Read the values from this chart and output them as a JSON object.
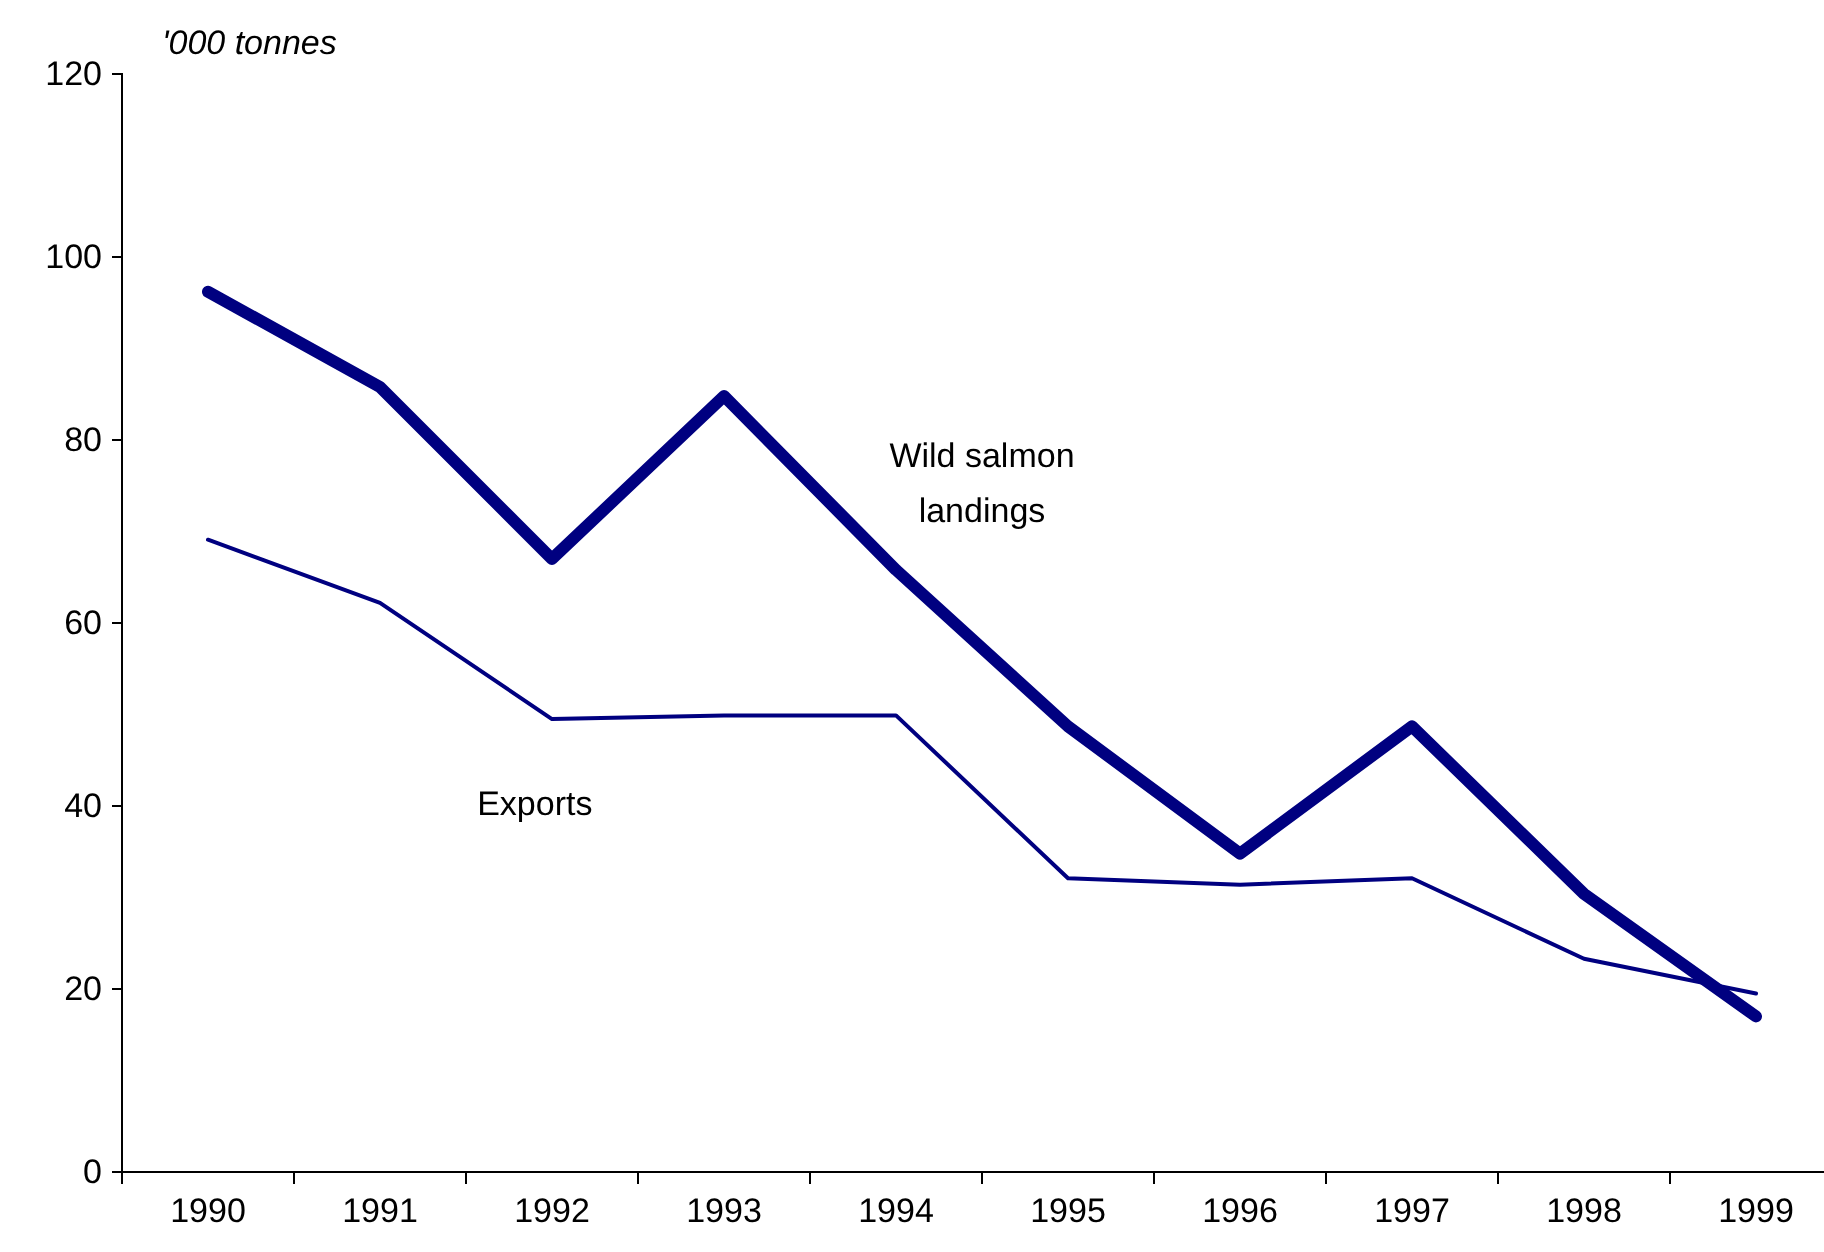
{
  "chart_data": {
    "type": "line",
    "ylabel": "'000 tonnes",
    "categories": [
      "1990",
      "1991",
      "1992",
      "1993",
      "1994",
      "1995",
      "1996",
      "1997",
      "1998",
      "1999"
    ],
    "series": [
      {
        "name": "Wild salmon landings",
        "color": "#000080",
        "values": [
          96.2,
          85.8,
          67.0,
          84.8,
          65.8,
          48.7,
          34.8,
          48.7,
          30.4,
          17.0
        ]
      },
      {
        "name": "Exports",
        "color": "#000080",
        "values": [
          69.1,
          62.2,
          49.5,
          49.9,
          49.9,
          32.1,
          31.4,
          32.1,
          23.3,
          19.5
        ]
      }
    ],
    "ylim": [
      0,
      120
    ],
    "yticks": [
      0,
      20,
      40,
      60,
      80,
      100,
      120
    ],
    "grid": false,
    "legend": false,
    "marker": "none",
    "line_style": "solid"
  }
}
